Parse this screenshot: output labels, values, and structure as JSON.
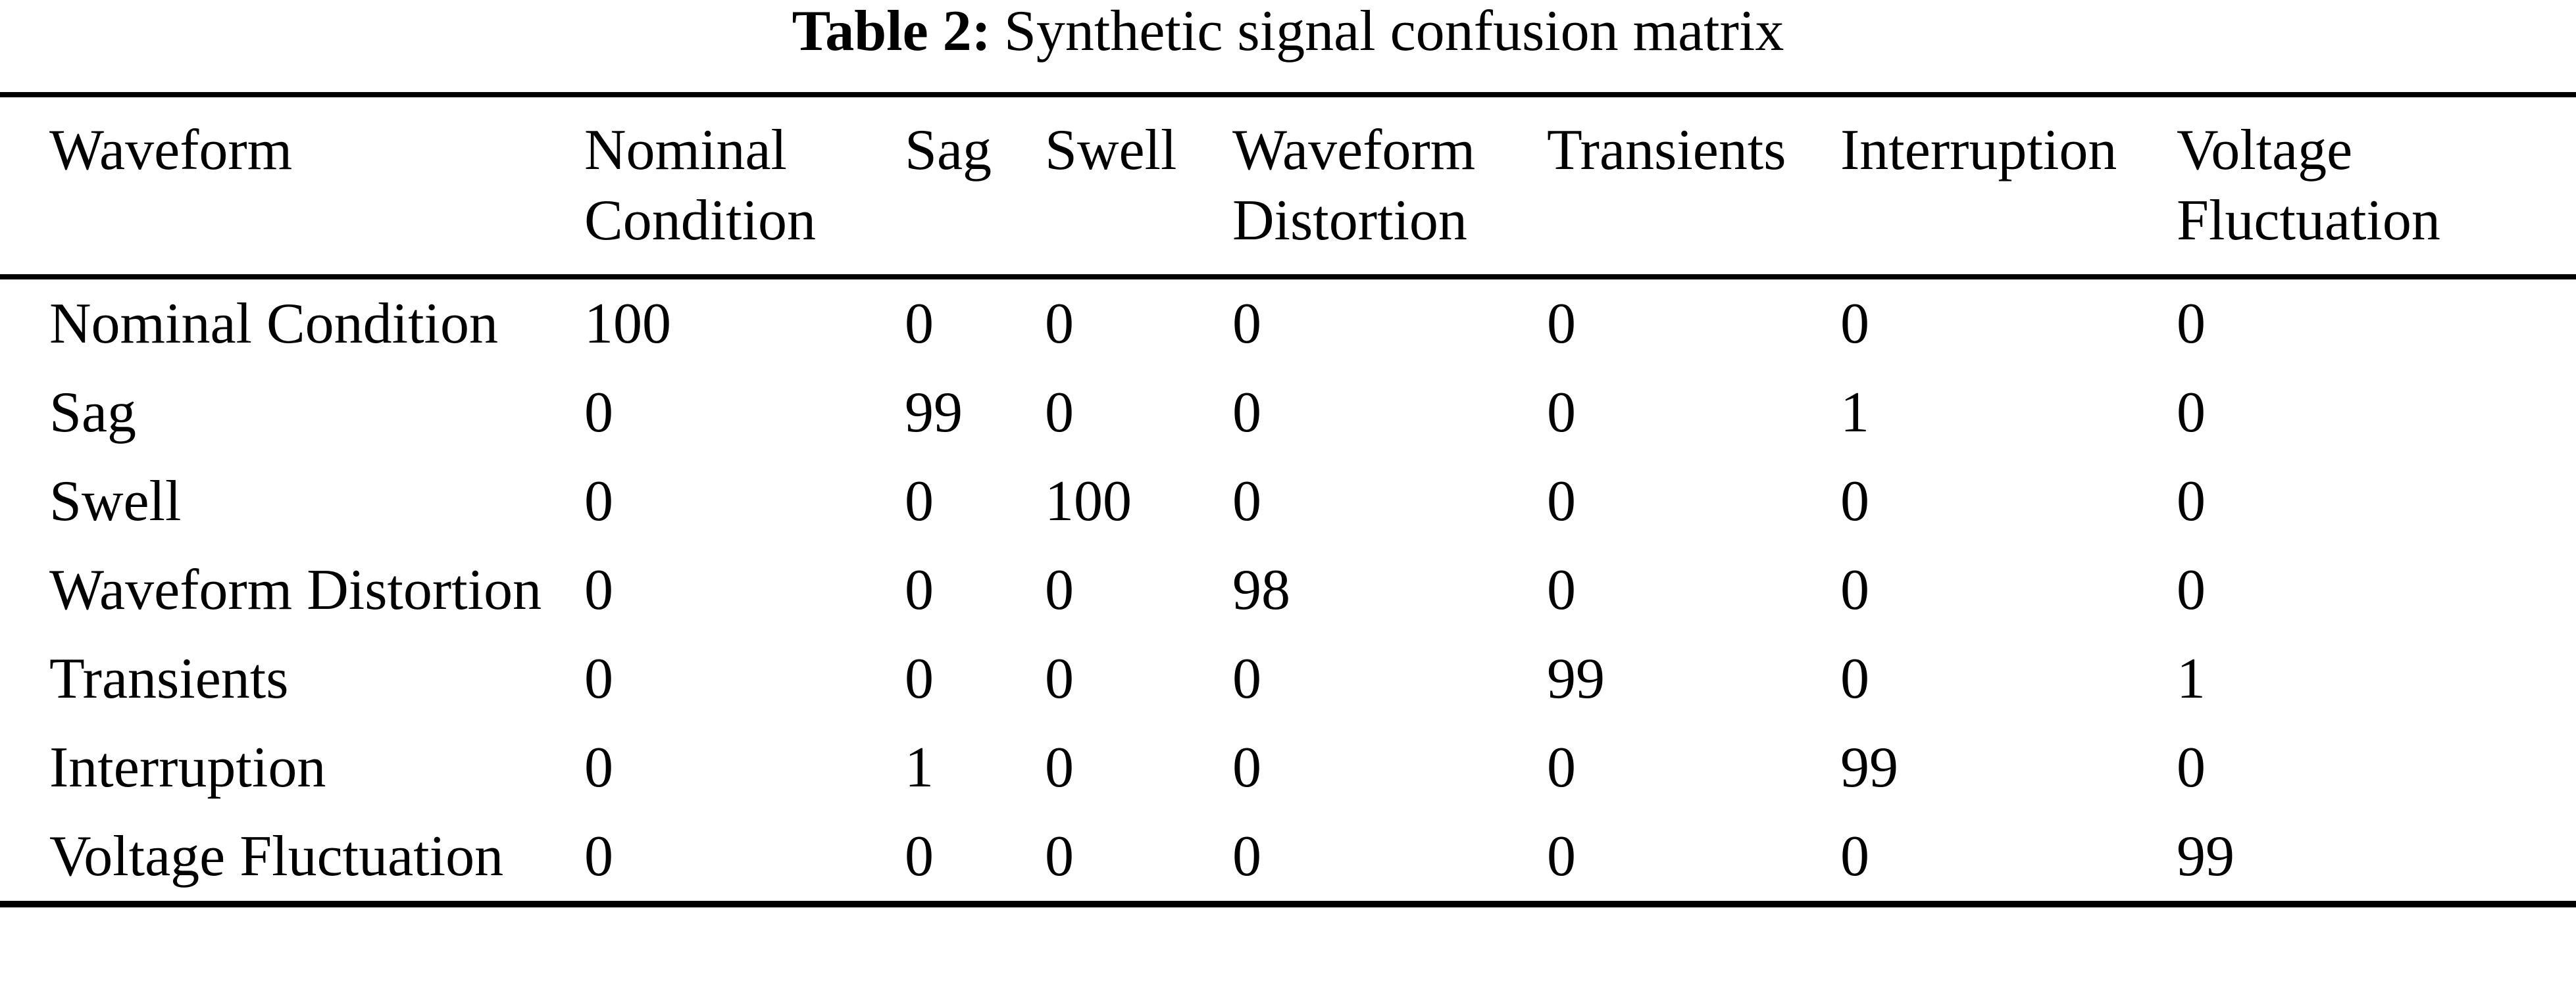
{
  "caption": {
    "label": "Table 2:",
    "text": "Synthetic signal confusion matrix"
  },
  "table": {
    "columns": [
      "Waveform",
      "Nominal Condition",
      "Sag",
      "Swell",
      "Waveform Distortion",
      "Transients",
      "Interruption",
      "Voltage Fluctuation"
    ],
    "rows": [
      {
        "label": "Nominal Condition",
        "values": [
          100,
          0,
          0,
          0,
          0,
          0,
          0
        ]
      },
      {
        "label": "Sag",
        "values": [
          0,
          99,
          0,
          0,
          0,
          1,
          0
        ]
      },
      {
        "label": "Swell",
        "values": [
          0,
          0,
          100,
          0,
          0,
          0,
          0
        ]
      },
      {
        "label": "Waveform Distortion",
        "values": [
          0,
          0,
          0,
          98,
          0,
          0,
          0
        ]
      },
      {
        "label": "Transients",
        "values": [
          0,
          0,
          0,
          0,
          99,
          0,
          1
        ]
      },
      {
        "label": "Interruption",
        "values": [
          0,
          1,
          0,
          0,
          0,
          99,
          0
        ]
      },
      {
        "label": "Voltage Fluctuation",
        "values": [
          0,
          0,
          0,
          0,
          0,
          0,
          99
        ]
      }
    ]
  }
}
